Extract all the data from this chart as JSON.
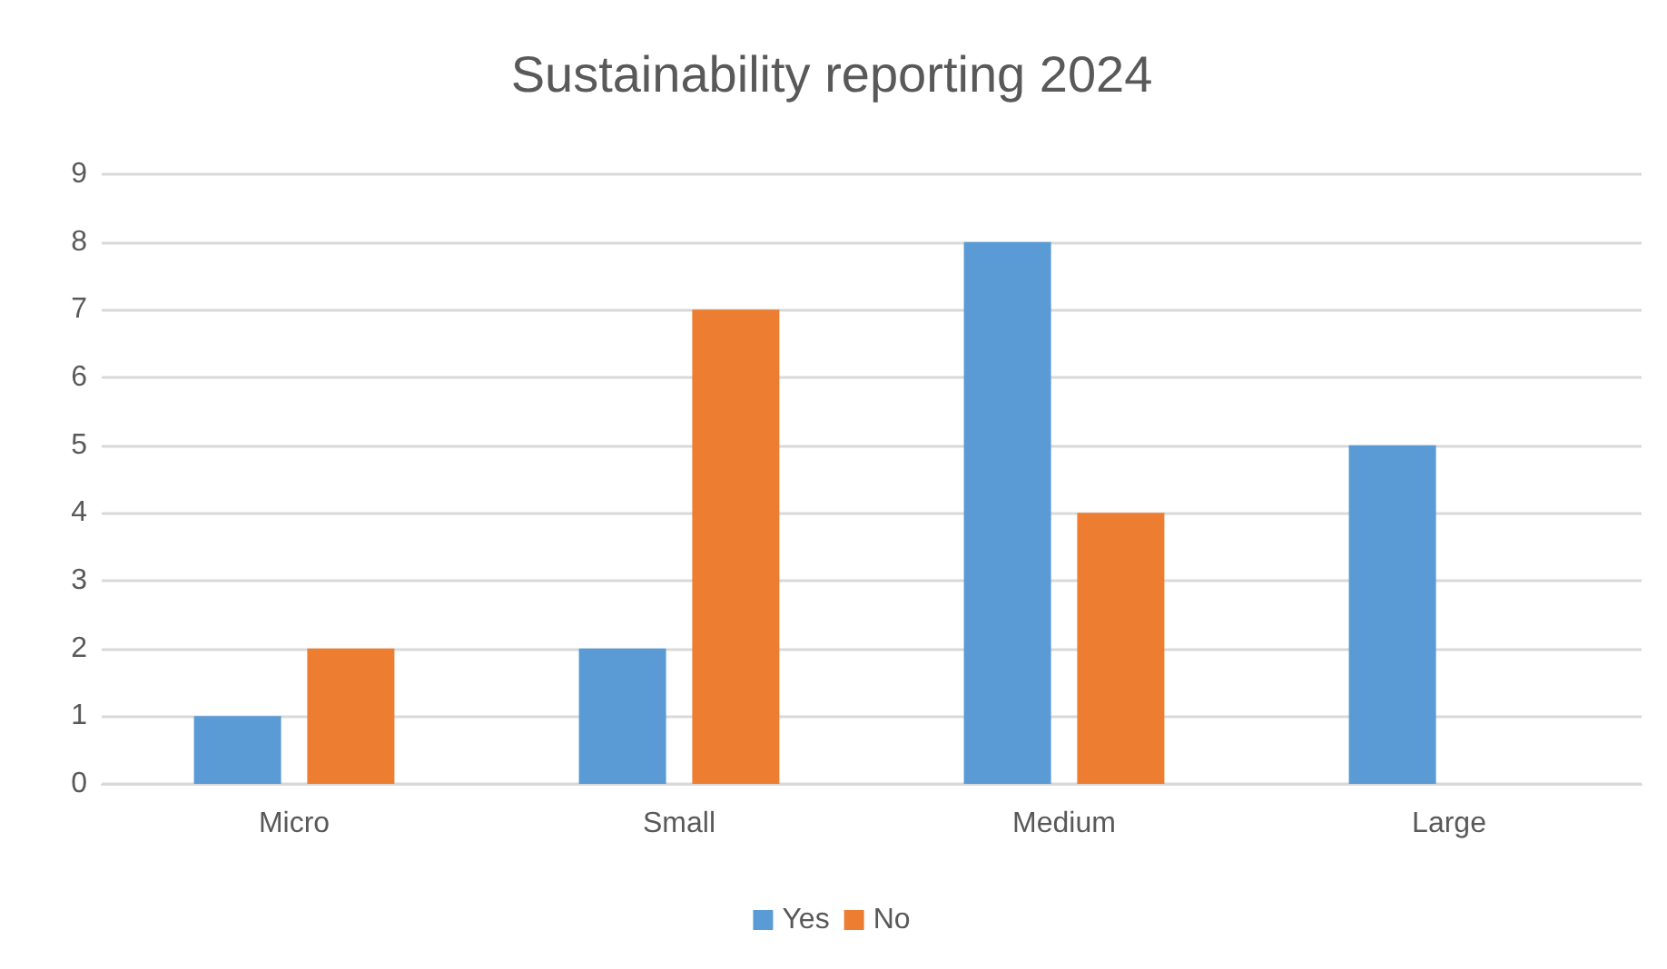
{
  "chart_data": {
    "type": "bar",
    "title": "Sustainability reporting 2024",
    "categories": [
      "Micro",
      "Small",
      "Medium",
      "Large"
    ],
    "series": [
      {
        "name": "Yes",
        "color": "#5b9bd5",
        "values": [
          1,
          2,
          8,
          5
        ]
      },
      {
        "name": "No",
        "color": "#ed7d31",
        "values": [
          2,
          7,
          4,
          0
        ]
      }
    ],
    "ylim": [
      0,
      9
    ],
    "yticks": [
      0,
      1,
      2,
      3,
      4,
      5,
      6,
      7,
      8,
      9
    ],
    "grid": "y",
    "legend": "bottom"
  }
}
